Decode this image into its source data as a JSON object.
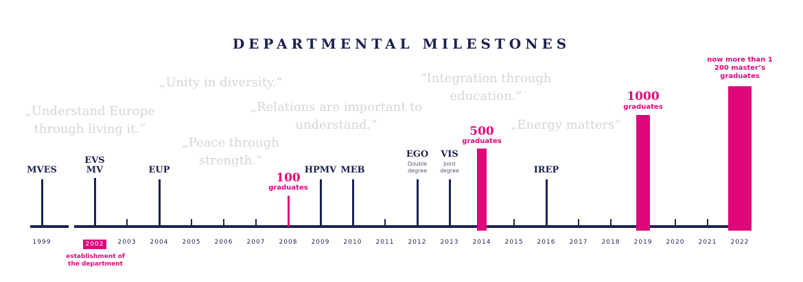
{
  "title": "DEPARTMENTAL MILESTONES",
  "quotes": [
    "„Understand Europe through living it.“",
    "„Unity in diversity.“",
    "„Peace through strength.“",
    "„Relations are important to understand.“",
    "“Integration through education.”",
    "„Energy matters“"
  ],
  "years": [
    "1999",
    "2002",
    "2003",
    "2004",
    "2005",
    "2006",
    "2007",
    "2008",
    "2009",
    "2010",
    "2011",
    "2012",
    "2013",
    "2014",
    "2015",
    "2016",
    "2017",
    "2018",
    "2019",
    "2020",
    "2021",
    "2022"
  ],
  "highlight_year": "2002",
  "establishment_note": "establishment of the department",
  "milestones": [
    {
      "year": "1999",
      "label": "MVES",
      "sub": ""
    },
    {
      "year": "2002",
      "label": "EVS MV",
      "sub": ""
    },
    {
      "year": "2004",
      "label": "EUP",
      "sub": ""
    },
    {
      "year": "2009",
      "label": "HPMV",
      "sub": ""
    },
    {
      "year": "2010",
      "label": "MEB",
      "sub": ""
    },
    {
      "year": "2012",
      "label": "EGO",
      "sub": "Double degree"
    },
    {
      "year": "2013",
      "label": "VIS",
      "sub": "Joint degree"
    },
    {
      "year": "2016",
      "label": "IREP",
      "sub": ""
    }
  ],
  "graduates": [
    {
      "year": "2008",
      "number": "100",
      "text": "graduates"
    },
    {
      "year": "2014",
      "number": "500",
      "text": "graduates"
    },
    {
      "year": "2019",
      "number": "1000",
      "text": "graduates"
    },
    {
      "year": "2022",
      "number": "",
      "text": "now more than 1 200 master’s graduates"
    }
  ],
  "colors": {
    "navy": "#1b2150",
    "magenta": "#e0077b",
    "quote": "#d6d6da"
  }
}
